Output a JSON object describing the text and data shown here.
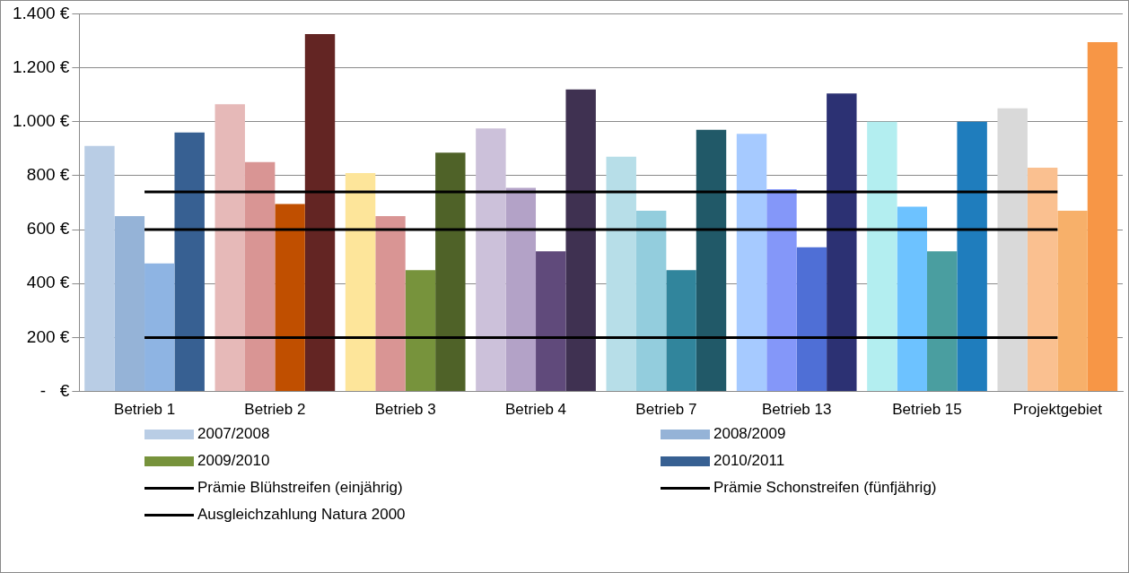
{
  "chart_data": {
    "type": "bar",
    "categories": [
      "Betrieb 1",
      "Betrieb 2",
      "Betrieb 3",
      "Betrieb 4",
      "Betrieb 7",
      "Betrieb 13",
      "Betrieb 15",
      "Projektgebiet"
    ],
    "series": [
      {
        "name": "2007/2008",
        "color": "#b9cde5",
        "colors": [
          "#b9cde5",
          "#e6b9b8",
          "#fde59a",
          "#ccc1da",
          "#b7dee8",
          "#a6caff",
          "#b3eef0",
          "#d9d9d9"
        ],
        "values": [
          910,
          1065,
          810,
          975,
          870,
          955,
          1000,
          1050
        ]
      },
      {
        "name": "2008/2009",
        "color": "#95b3d7",
        "colors": [
          "#95b3d7",
          "#d99594",
          "#d99594",
          "#b3a2c7",
          "#93cddd",
          "#8497f9",
          "#6dc2ff",
          "#fac090"
        ],
        "values": [
          650,
          850,
          650,
          755,
          670,
          750,
          685,
          830
        ]
      },
      {
        "name": "2009/2010",
        "color": "#77933c",
        "colors": [
          "#8eb4e3",
          "#c04f00",
          "#77933c",
          "#604a7b",
          "#31859c",
          "#4f6fd6",
          "#4a9ea0",
          "#f7b06a"
        ],
        "values": [
          475,
          695,
          450,
          520,
          450,
          535,
          520,
          670
        ]
      },
      {
        "name": "2010/2011",
        "color": "#376092",
        "colors": [
          "#376092",
          "#632523",
          "#4f6228",
          "#3f3151",
          "#215968",
          "#2c3173",
          "#1f7dbd",
          "#f79646"
        ],
        "values": [
          960,
          1325,
          885,
          1120,
          970,
          1105,
          1000,
          1295
        ]
      },
      {
        "name": "Prämie Blühstreifen (einjährig)",
        "type": "line",
        "color": "#000000",
        "values": [
          740,
          740,
          740,
          740,
          740,
          740,
          740,
          740
        ]
      },
      {
        "name": "Prämie Schonstreifen (fünfjährig)",
        "type": "line",
        "color": "#000000",
        "values": [
          600,
          600,
          600,
          600,
          600,
          600,
          600,
          600
        ]
      },
      {
        "name": "Ausgleichzahlung Natura 2000",
        "type": "line",
        "color": "#000000",
        "values": [
          200,
          200,
          200,
          200,
          200,
          200,
          200,
          200
        ]
      }
    ],
    "ylim": [
      0,
      1400
    ],
    "yticks": [
      {
        "value": 0,
        "label": "-   €"
      },
      {
        "value": 200,
        "label": "200 €"
      },
      {
        "value": 400,
        "label": "400 €"
      },
      {
        "value": 600,
        "label": "600 €"
      },
      {
        "value": 800,
        "label": "800 €"
      },
      {
        "value": 1000,
        "label": "1.000 €"
      },
      {
        "value": 1200,
        "label": "1.200 €"
      },
      {
        "value": 1400,
        "label": "1.400 €"
      }
    ],
    "grid": "y",
    "legend": "bottom",
    "marker": "none",
    "line_style": "solid"
  }
}
